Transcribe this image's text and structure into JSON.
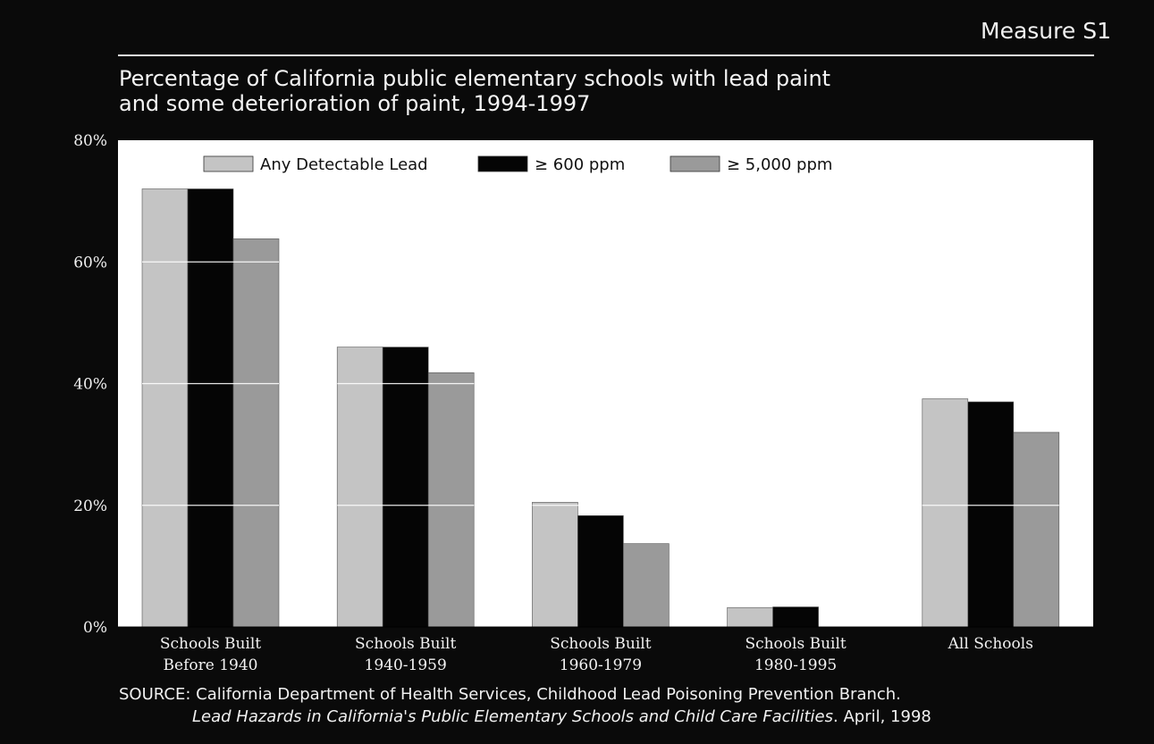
{
  "header": {
    "measure_label": "Measure S1"
  },
  "chart_data": {
    "type": "bar",
    "title": "Percentage of California public elementary schools with lead paint\nand some deterioration of paint, 1994-1997",
    "categories": [
      [
        "Schools Built",
        "Before 1940"
      ],
      [
        "Schools Built",
        "1940-1959"
      ],
      [
        "Schools Built",
        "1960-1979"
      ],
      [
        "Schools Built",
        "1980-1995"
      ],
      [
        "All Schools"
      ]
    ],
    "series": [
      {
        "name": "Any Detectable Lead",
        "values": [
          72,
          46,
          20.5,
          3.2,
          37.5
        ],
        "color": "#c4c4c4"
      },
      {
        "name": "≥ 600 ppm",
        "values": [
          72,
          46,
          18.3,
          3.3,
          37
        ],
        "color": "#050505"
      },
      {
        "name": "≥ 5,000 ppm",
        "values": [
          63.8,
          41.8,
          13.7,
          0,
          32
        ],
        "color": "#9a9a9a"
      }
    ],
    "yticks": [
      "0%",
      "20%",
      "40%",
      "60%",
      "80%"
    ],
    "ylim": [
      0,
      80
    ],
    "xlabel": "",
    "ylabel": "",
    "grid": true,
    "legend_position": "top-left"
  },
  "source": {
    "label": "SOURCE:",
    "line1": "California Department of Health Services, Childhood Lead Poisoning Prevention Branch.",
    "line2_title": "Lead Hazards in California's Public Elementary Schools and Child Care Facilities",
    "line2_rest": ". April, 1998"
  }
}
